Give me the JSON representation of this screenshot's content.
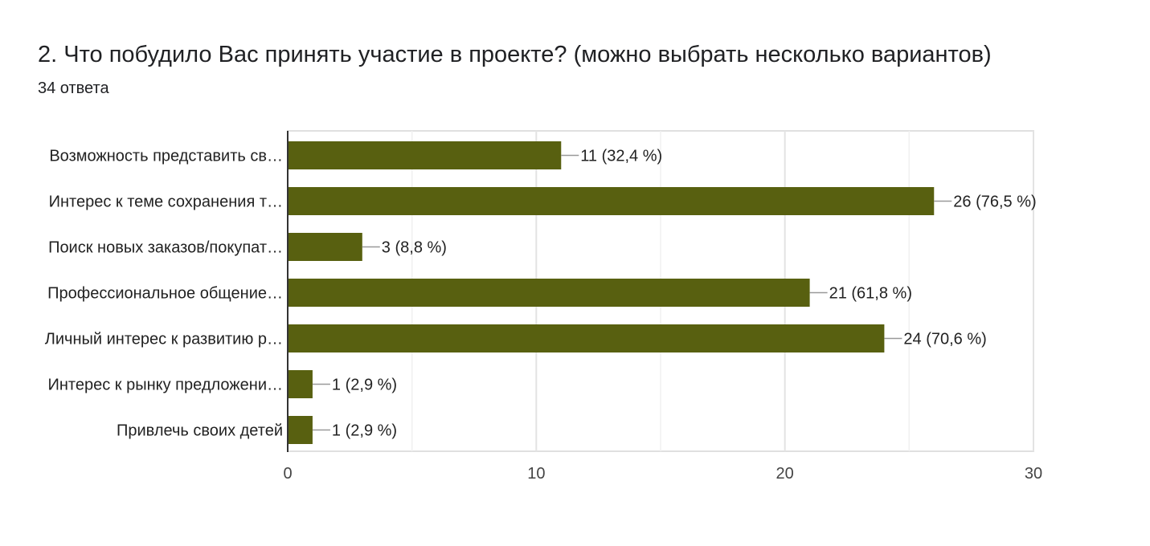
{
  "question": {
    "title": "2. Что побудило Вас принять участие в проекте? (можно выбрать несколько вариантов)",
    "response_count": "34 ответа"
  },
  "chart_data": {
    "type": "bar",
    "orientation": "horizontal",
    "categories": [
      "Возможность представить св…",
      "Интерес к теме сохранения т…",
      "Поиск новых заказов/покупат…",
      "Профессиональное общение…",
      "Личный интерес к развитию р…",
      "Интерес к рынку предложени…",
      "Привлечь своих детей"
    ],
    "values": [
      11,
      26,
      3,
      21,
      24,
      1,
      1
    ],
    "data_labels": [
      "11 (32,4 %)",
      "26 (76,5 %)",
      "3 (8,8 %)",
      "21 (61,8 %)",
      "24 (70,6 %)",
      "1 (2,9 %)",
      "1 (2,9 %)"
    ],
    "xlim": [
      0,
      30
    ],
    "xticks": [
      0,
      10,
      20,
      30
    ],
    "minor_gridlines": [
      5,
      15,
      25
    ],
    "grid": true,
    "legend": "none",
    "bar_color": "#586010",
    "title": "",
    "xlabel": "",
    "ylabel": ""
  }
}
